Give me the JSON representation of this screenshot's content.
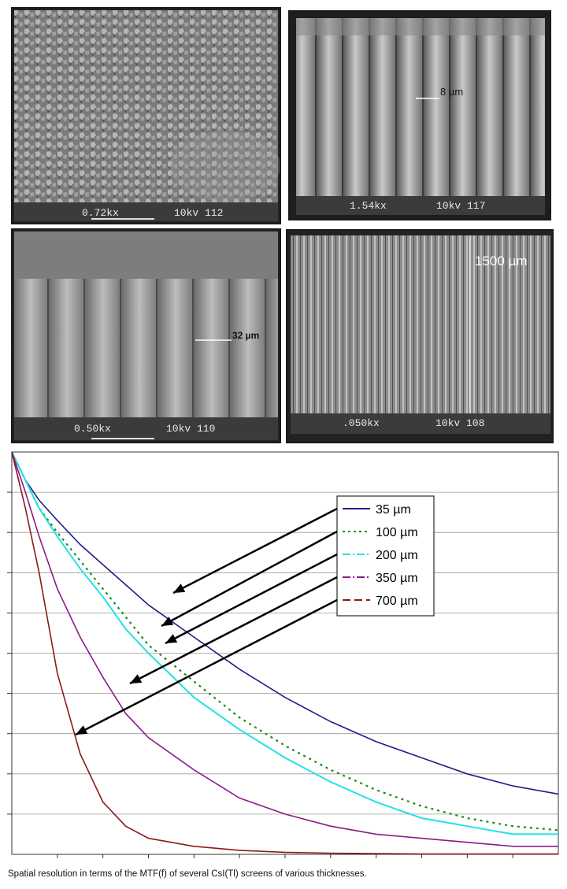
{
  "micrographs": [
    {
      "magnification": "0.72kx",
      "voltage": "10kv 112",
      "scale_label": ""
    },
    {
      "magnification": "1.54kx",
      "voltage": "10kv 117",
      "scale_label": "8 µm"
    },
    {
      "magnification": "0.50kx",
      "voltage": "10kv 110",
      "scale_label": "32 µm"
    },
    {
      "magnification": ".050kx",
      "voltage": "10kv 108",
      "scale_label": "1500 µm"
    }
  ],
  "caption": "Spatial resolution in terms of the MTF(f) of several CsI(Tl) screens of various thicknesses.",
  "colors": {
    "s35": "#1f1f8a",
    "s100": "#1a8a1a",
    "s200": "#22e0e6",
    "s350": "#8a1a8a",
    "s700": "#8b1a1a"
  },
  "chart_data": {
    "type": "line",
    "title": "",
    "xlabel": "",
    "ylabel": "",
    "xlim": [
      0,
      12
    ],
    "ylim": [
      0,
      1
    ],
    "grid": true,
    "legend_position": "upper-right, inside",
    "x": [
      0,
      0.3,
      0.6,
      1,
      1.5,
      2,
      2.5,
      3,
      4,
      5,
      6,
      7,
      8,
      9,
      10,
      11,
      12
    ],
    "series": [
      {
        "name": "35 µm",
        "values": [
          1.0,
          0.93,
          0.88,
          0.83,
          0.77,
          0.72,
          0.67,
          0.62,
          0.54,
          0.46,
          0.39,
          0.33,
          0.28,
          0.24,
          0.2,
          0.17,
          0.15
        ]
      },
      {
        "name": "100 µm",
        "values": [
          1.0,
          0.93,
          0.86,
          0.8,
          0.73,
          0.66,
          0.59,
          0.52,
          0.43,
          0.34,
          0.27,
          0.21,
          0.16,
          0.12,
          0.09,
          0.07,
          0.06
        ]
      },
      {
        "name": "200 µm",
        "values": [
          1.0,
          0.93,
          0.86,
          0.79,
          0.71,
          0.64,
          0.56,
          0.5,
          0.39,
          0.31,
          0.24,
          0.18,
          0.13,
          0.09,
          0.07,
          0.05,
          0.05
        ]
      },
      {
        "name": "350 µm",
        "values": [
          1.0,
          0.9,
          0.79,
          0.66,
          0.54,
          0.44,
          0.35,
          0.29,
          0.21,
          0.14,
          0.1,
          0.07,
          0.05,
          0.04,
          0.03,
          0.02,
          0.02
        ]
      },
      {
        "name": "700 µm",
        "values": [
          1.0,
          0.86,
          0.7,
          0.45,
          0.25,
          0.13,
          0.07,
          0.04,
          0.02,
          0.01,
          0.005,
          0.003,
          0.002,
          0.001,
          0.001,
          0.001,
          0.001
        ]
      }
    ]
  }
}
